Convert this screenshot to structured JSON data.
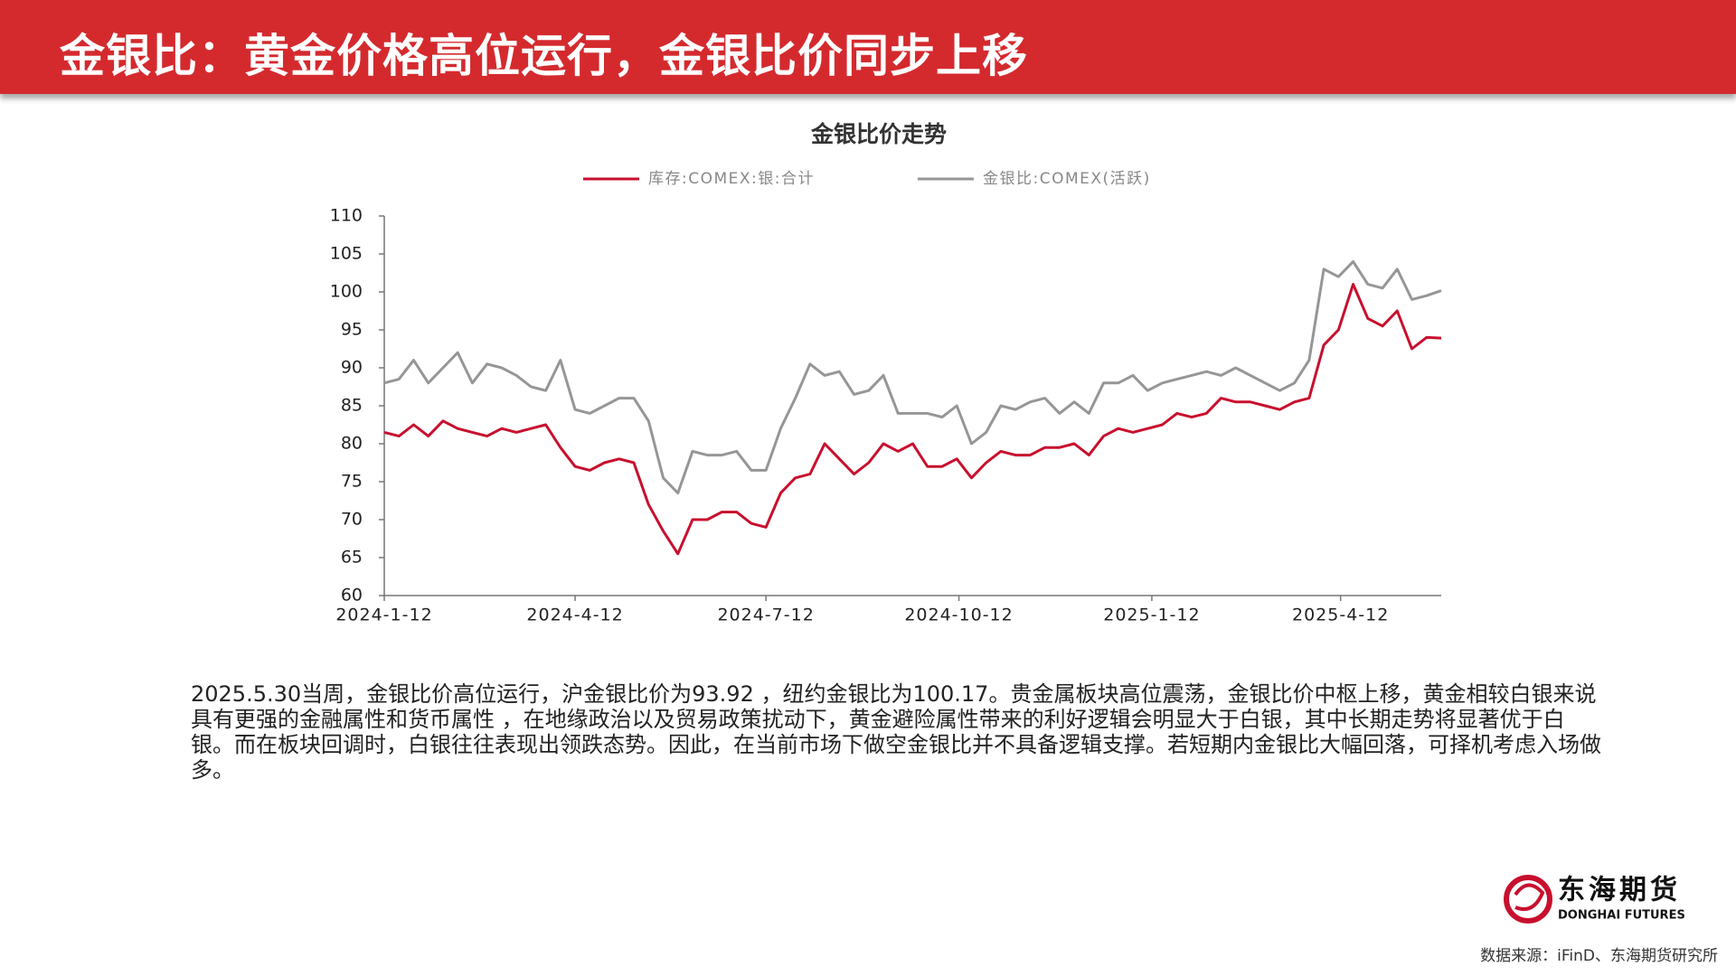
{
  "header": {
    "title": "金银比：黄金价格高位运行，金银比价同步上移"
  },
  "chart_data": {
    "type": "line",
    "title": "金银比价走势",
    "x": [
      "2024-1-12",
      "2024-1-19",
      "2024-1-26",
      "2024-2-2",
      "2024-2-9",
      "2024-2-16",
      "2024-2-23",
      "2024-3-1",
      "2024-3-8",
      "2024-3-15",
      "2024-3-22",
      "2024-3-29",
      "2024-4-5",
      "2024-4-12",
      "2024-4-19",
      "2024-4-26",
      "2024-5-3",
      "2024-5-10",
      "2024-5-17",
      "2024-5-24",
      "2024-5-31",
      "2024-6-7",
      "2024-6-14",
      "2024-6-21",
      "2024-6-28",
      "2024-7-5",
      "2024-7-12",
      "2024-7-19",
      "2024-7-26",
      "2024-8-2",
      "2024-8-9",
      "2024-8-16",
      "2024-8-23",
      "2024-8-30",
      "2024-9-6",
      "2024-9-13",
      "2024-9-20",
      "2024-9-27",
      "2024-10-4",
      "2024-10-11",
      "2024-10-18",
      "2024-10-25",
      "2024-11-1",
      "2024-11-8",
      "2024-11-15",
      "2024-11-22",
      "2024-11-29",
      "2024-12-6",
      "2024-12-13",
      "2024-12-20",
      "2024-12-27",
      "2025-1-3",
      "2025-1-10",
      "2025-1-17",
      "2025-1-24",
      "2025-1-31",
      "2025-2-7",
      "2025-2-14",
      "2025-2-21",
      "2025-2-28",
      "2025-3-7",
      "2025-3-14",
      "2025-3-21",
      "2025-3-28",
      "2025-4-4",
      "2025-4-11",
      "2025-4-18",
      "2025-4-25",
      "2025-5-2",
      "2025-5-9",
      "2025-5-16",
      "2025-5-23",
      "2025-5-30"
    ],
    "xlim": [
      "2024-1-12",
      "2025-5-30"
    ],
    "xticks": [
      "2024-1-12",
      "2024-4-12",
      "2024-7-12",
      "2024-10-12",
      "2025-1-12",
      "2025-4-12"
    ],
    "ylim": [
      60,
      110
    ],
    "yticks": [
      60,
      65,
      70,
      75,
      80,
      85,
      90,
      95,
      100,
      105,
      110
    ],
    "series": [
      {
        "name": "库存:COMEX:银:合计",
        "color": "#c8102e",
        "values": [
          81.5,
          81,
          82.5,
          81,
          83,
          82,
          81.5,
          81,
          82,
          81.5,
          82,
          82.5,
          79.5,
          77,
          76.5,
          77.5,
          78,
          77.5,
          72,
          68.5,
          65.5,
          70,
          70,
          71,
          71,
          69.5,
          69,
          73.5,
          75.5,
          76,
          80,
          78,
          76,
          77.5,
          80,
          79,
          80,
          77,
          77,
          78,
          75.5,
          77.5,
          79,
          78.5,
          78.5,
          79.5,
          79.5,
          80,
          78.5,
          81,
          82,
          81.5,
          82,
          82.5,
          84,
          83.5,
          84,
          86,
          85.5,
          85.5,
          85,
          84.5,
          85.5,
          86,
          93,
          95,
          101,
          96.5,
          95.5,
          97.5,
          92.5,
          94,
          93.92
        ]
      },
      {
        "name": "金银比:COMEX(活跃)",
        "color": "#969696",
        "values": [
          88,
          88.5,
          91,
          88,
          90,
          92,
          88,
          90.5,
          90,
          89,
          87.5,
          87,
          91,
          84.5,
          84,
          85,
          86,
          86,
          83,
          75.5,
          73.5,
          79,
          78.5,
          78.5,
          79,
          76.5,
          76.5,
          82,
          86,
          90.5,
          89,
          89.5,
          86.5,
          87,
          89,
          84,
          84,
          84,
          83.5,
          85,
          80,
          81.5,
          85,
          84.5,
          85.5,
          86,
          84,
          85.5,
          84,
          88,
          88,
          89,
          87,
          88,
          88.5,
          89,
          89.5,
          89,
          90,
          89,
          88,
          87,
          88,
          91,
          103,
          102,
          104,
          101,
          100.5,
          103,
          99,
          99.5,
          100.17
        ]
      }
    ]
  },
  "body": {
    "text": "2025.5.30当周，金银比价高位运行，沪金银比价为93.92 ，纽约金银比为100.17。贵金属板块高位震荡，金银比价中枢上移，黄金相较白银来说具有更强的金融属性和货币属性 ，在地缘政治以及贸易政策扰动下，黄金避险属性带来的利好逻辑会明显大于白银，其中长期走势将显著优于白银。而在板块回调时，白银往往表现出领跌态势。因此，在当前市场下做空金银比并不具备逻辑支撑。若短期内金银比大幅回落，可择机考虑入场做多。"
  },
  "logo": {
    "name": "东海期货",
    "name_en": "DONGHAI FUTURES"
  },
  "source": "数据来源：iFinD、东海期货研究所"
}
